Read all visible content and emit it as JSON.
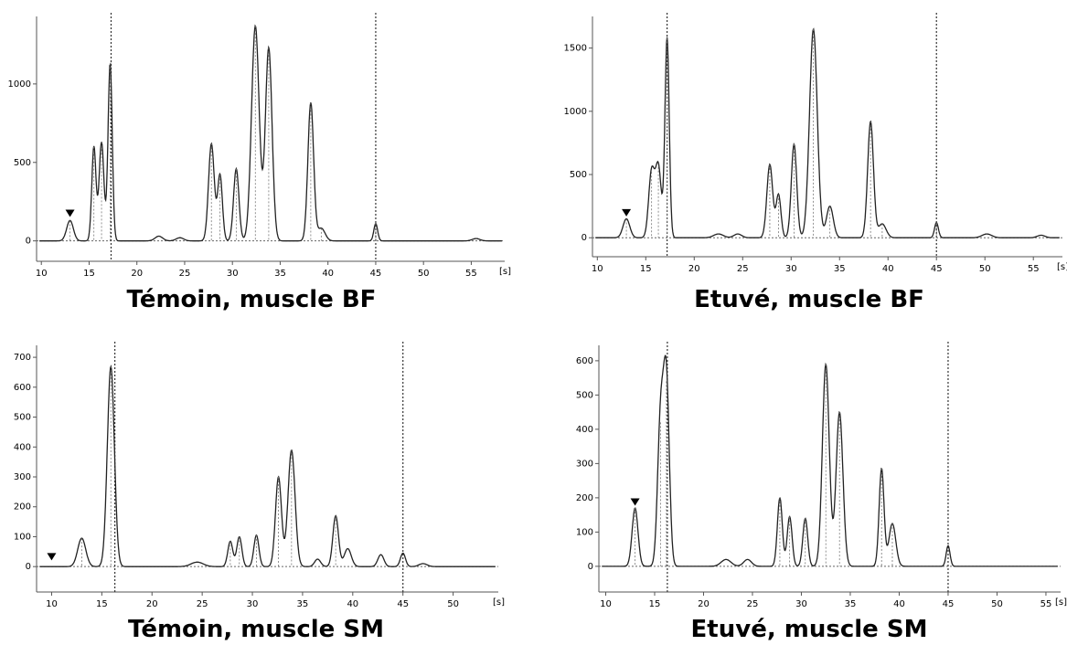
{
  "chart_data": [
    {
      "type": "line",
      "title": "Témoin, muscle BF",
      "x_unit": "[s]",
      "xlim": [
        9.5,
        58.5
      ],
      "ylim": [
        -130,
        1430
      ],
      "x_ticks": [
        10,
        15,
        20,
        25,
        30,
        35,
        40,
        45,
        50,
        55
      ],
      "y_ticks": [
        0,
        500,
        1000
      ],
      "vlines": [
        17.3,
        45
      ],
      "markers": [
        {
          "x": 13,
          "y": 170
        }
      ],
      "peaks": [
        [
          13,
          130,
          0.35
        ],
        [
          15.5,
          600,
          0.22
        ],
        [
          16.3,
          630,
          0.25
        ],
        [
          17.2,
          1130,
          0.22
        ],
        [
          22.3,
          30,
          0.4
        ],
        [
          24.5,
          20,
          0.4
        ],
        [
          27.8,
          620,
          0.3
        ],
        [
          28.7,
          420,
          0.25
        ],
        [
          30.4,
          460,
          0.28
        ],
        [
          32.4,
          1370,
          0.4
        ],
        [
          33.8,
          1230,
          0.35
        ],
        [
          38.2,
          880,
          0.3
        ],
        [
          39.3,
          80,
          0.4
        ],
        [
          45,
          110,
          0.2
        ],
        [
          55.5,
          15,
          0.4
        ]
      ]
    },
    {
      "type": "line",
      "title": "Etuvé, muscle BF",
      "x_unit": "[s]",
      "xlim": [
        9.5,
        58
      ],
      "ylim": [
        -150,
        1750
      ],
      "x_ticks": [
        10,
        15,
        20,
        25,
        30,
        35,
        40,
        45,
        50,
        55
      ],
      "y_ticks": [
        0,
        500,
        1000,
        1500
      ],
      "vlines": [
        17.2,
        45
      ],
      "markers": [
        {
          "x": 13,
          "y": 190
        }
      ],
      "peaks": [
        [
          13,
          150,
          0.35
        ],
        [
          15.6,
          520,
          0.3
        ],
        [
          16.3,
          560,
          0.3
        ],
        [
          17.2,
          1580,
          0.22
        ],
        [
          22.5,
          30,
          0.5
        ],
        [
          24.5,
          30,
          0.4
        ],
        [
          27.8,
          580,
          0.3
        ],
        [
          28.7,
          340,
          0.25
        ],
        [
          30.3,
          740,
          0.28
        ],
        [
          32.3,
          1650,
          0.4
        ],
        [
          34,
          250,
          0.35
        ],
        [
          38.2,
          920,
          0.3
        ],
        [
          39.4,
          110,
          0.4
        ],
        [
          45,
          120,
          0.2
        ],
        [
          50.2,
          30,
          0.5
        ],
        [
          55.8,
          20,
          0.4
        ]
      ]
    },
    {
      "type": "line",
      "title": "Témoin, muscle SM",
      "x_unit": "[s]",
      "xlim": [
        8.5,
        54.5
      ],
      "ylim": [
        -85,
        740
      ],
      "x_ticks": [
        10,
        15,
        20,
        25,
        30,
        35,
        40,
        45,
        50
      ],
      "y_ticks": [
        0,
        100,
        200,
        300,
        400,
        500,
        600,
        700
      ],
      "vlines": [
        16.3,
        45
      ],
      "markers": [
        {
          "x": 10,
          "y": 30
        }
      ],
      "peaks": [
        [
          13,
          95,
          0.4
        ],
        [
          15.9,
          670,
          0.35
        ],
        [
          24.5,
          15,
          0.6
        ],
        [
          27.8,
          85,
          0.25
        ],
        [
          28.7,
          100,
          0.25
        ],
        [
          30.4,
          105,
          0.25
        ],
        [
          32.6,
          300,
          0.3
        ],
        [
          33.9,
          390,
          0.35
        ],
        [
          36.5,
          25,
          0.3
        ],
        [
          38.3,
          170,
          0.28
        ],
        [
          39.5,
          60,
          0.35
        ],
        [
          42.8,
          40,
          0.3
        ],
        [
          45,
          45,
          0.25
        ],
        [
          47,
          10,
          0.4
        ]
      ]
    },
    {
      "type": "line",
      "title": "Etuvé, muscle SM",
      "x_unit": "[s]",
      "xlim": [
        9.3,
        56.5
      ],
      "ylim": [
        -75,
        645
      ],
      "x_ticks": [
        10,
        15,
        20,
        25,
        30,
        35,
        40,
        45,
        50,
        55
      ],
      "y_ticks": [
        0,
        100,
        200,
        300,
        400,
        500,
        600
      ],
      "vlines": [
        16.3,
        45
      ],
      "markers": [
        {
          "x": 13,
          "y": 185
        }
      ],
      "peaks": [
        [
          13,
          170,
          0.3
        ],
        [
          15.6,
          420,
          0.3
        ],
        [
          16.2,
          540,
          0.3
        ],
        [
          22.3,
          20,
          0.5
        ],
        [
          24.5,
          20,
          0.4
        ],
        [
          27.8,
          200,
          0.25
        ],
        [
          28.8,
          145,
          0.25
        ],
        [
          30.4,
          140,
          0.25
        ],
        [
          32.5,
          590,
          0.35
        ],
        [
          33.9,
          450,
          0.35
        ],
        [
          38.2,
          285,
          0.25
        ],
        [
          39.3,
          125,
          0.35
        ],
        [
          45,
          60,
          0.2
        ]
      ]
    }
  ]
}
